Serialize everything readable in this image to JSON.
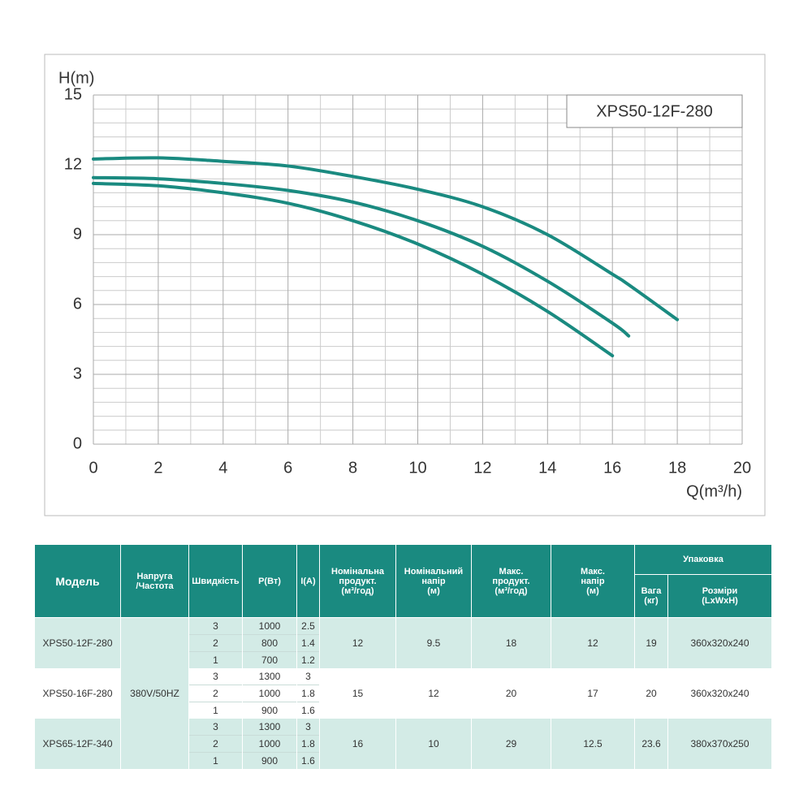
{
  "chart_data": {
    "type": "line",
    "annotation": "XPS50-12F-280",
    "y_label": "H(m)",
    "x_label": "Q(m³/h)",
    "x": [
      0,
      2,
      4,
      6,
      8,
      10,
      12,
      14,
      16,
      16.5,
      18
    ],
    "series": [
      {
        "color": "#1a8a80",
        "values": [
          12.25,
          12.3,
          12.15,
          11.95,
          11.5,
          10.95,
          10.2,
          9.0,
          7.3,
          6.85,
          5.35
        ]
      },
      {
        "color": "#1a8a80",
        "values": [
          11.45,
          11.4,
          11.2,
          10.9,
          10.4,
          9.6,
          8.5,
          7.0,
          5.2,
          4.65,
          null
        ]
      },
      {
        "color": "#1a8a80",
        "values": [
          11.2,
          11.1,
          10.8,
          10.35,
          9.6,
          8.6,
          7.3,
          5.7,
          3.8,
          null,
          null
        ]
      }
    ],
    "xlim": [
      0,
      20
    ],
    "xticks": [
      0,
      2,
      4,
      6,
      8,
      10,
      12,
      14,
      16,
      18,
      20
    ],
    "ylim": [
      0,
      15
    ],
    "yticks": [
      0,
      3,
      6,
      9,
      12,
      15
    ],
    "grid": true
  },
  "table": {
    "headers": {
      "model": "Модель",
      "voltage": "Напруга\n/Частота",
      "speed": "Швидкість",
      "power": "P(Вт)",
      "current": "I(A)",
      "nom_flow": "Номінальна\nпродукт.\n(м³/год)",
      "nom_head": "Номінальний\nнапір\n(м)",
      "max_flow": "Макс.\nпродукт.\n(м³/год)",
      "max_head": "Макс.\nнапір\n(м)",
      "packaging": "Упаковка",
      "weight": "Вага\n(кг)",
      "dimensions": "Розміри\n(LxWxH)"
    },
    "voltage": "380V/50HZ",
    "rows": [
      {
        "model": "XPS50-12F-280",
        "speeds": [
          {
            "speed": 3,
            "power": 1000,
            "current": 2.5
          },
          {
            "speed": 2,
            "power": 800,
            "current": 1.4
          },
          {
            "speed": 1,
            "power": 700,
            "current": 1.2
          }
        ],
        "nom_flow": 12,
        "nom_head": 9.5,
        "max_flow": 18,
        "max_head": 12,
        "weight": 19,
        "dimensions": "360x320x240"
      },
      {
        "model": "XPS50-16F-280",
        "speeds": [
          {
            "speed": 3,
            "power": 1300,
            "current": 3
          },
          {
            "speed": 2,
            "power": 1000,
            "current": 1.8
          },
          {
            "speed": 1,
            "power": 900,
            "current": 1.6
          }
        ],
        "nom_flow": 15,
        "nom_head": 12,
        "max_flow": 20,
        "max_head": 17,
        "weight": 20,
        "dimensions": "360x320x240"
      },
      {
        "model": "XPS65-12F-340",
        "speeds": [
          {
            "speed": 3,
            "power": 1300,
            "current": 3
          },
          {
            "speed": 2,
            "power": 1000,
            "current": 1.8
          },
          {
            "speed": 1,
            "power": 900,
            "current": 1.6
          }
        ],
        "nom_flow": 16,
        "nom_head": 10,
        "max_flow": 29,
        "max_head": 12.5,
        "weight": 23.6,
        "dimensions": "380x370x250"
      }
    ]
  }
}
